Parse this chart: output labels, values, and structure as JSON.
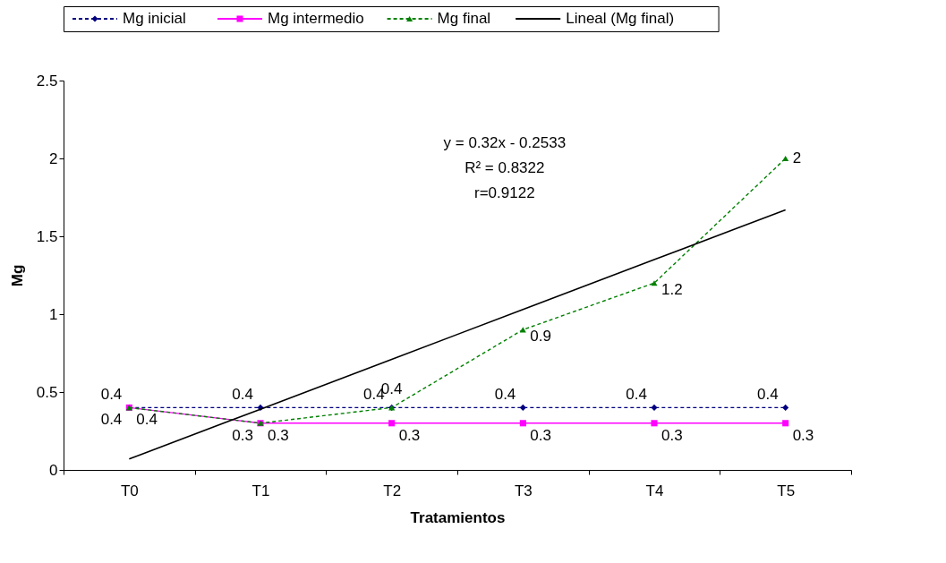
{
  "chart_data": {
    "type": "line",
    "xlabel": "Tratamientos",
    "ylabel": "Mg",
    "categories": [
      "T0",
      "T1",
      "T2",
      "T3",
      "T4",
      "T5"
    ],
    "ylim": [
      0,
      2.5
    ],
    "yticks": [
      0,
      0.5,
      1,
      1.5,
      2,
      2.5
    ],
    "grid": false,
    "legend": "top",
    "data_labels": true,
    "annotations": [
      "y = 0.32x - 0.2533",
      "R² = 0.8322",
      "r=0.9122"
    ],
    "series": [
      {
        "name": "Mg inicial",
        "color": "#000080",
        "marker": "diamond",
        "line_style": "dashed",
        "values": [
          0.4,
          0.4,
          0.4,
          0.4,
          0.4,
          0.4
        ]
      },
      {
        "name": "Mg intermedio",
        "color": "#ff00ff",
        "marker": "square",
        "line_style": "solid",
        "values": [
          0.4,
          0.3,
          0.3,
          0.3,
          0.3,
          0.3
        ]
      },
      {
        "name": "Mg final",
        "color": "#008000",
        "marker": "triangle",
        "line_style": "dashed",
        "values": [
          0.4,
          0.3,
          0.4,
          0.9,
          1.2,
          2
        ]
      },
      {
        "name": "Lineal (Mg final)",
        "type": "line",
        "color": "#000000",
        "marker": "none",
        "line_style": "solid",
        "data_labels": false,
        "values": [
          0.07,
          0.39,
          0.71,
          1.03,
          1.35,
          1.67
        ]
      }
    ]
  }
}
